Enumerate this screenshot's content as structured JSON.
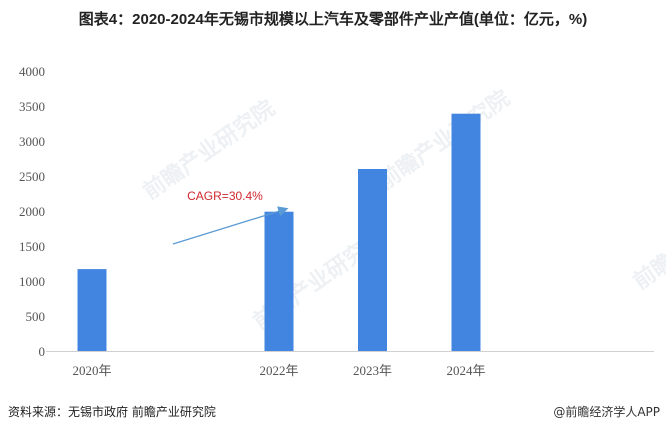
{
  "title": "图表4：2020-2024年无锡市规模以上汽车及零部件产业产值(单位：亿元，%)",
  "source": "资料来源：无锡市政府 前瞻产业研究院",
  "credit": "@前瞻经济学人APP",
  "watermark": "前瞻产业研究院",
  "chart_data": {
    "type": "bar",
    "title": "图表4：2020-2024年无锡市规模以上汽车及零部件产业产值(单位：亿元，%)",
    "categories": [
      "2020年",
      "2022年",
      "2023年",
      "2024年"
    ],
    "years": [
      2020,
      2022,
      2023,
      2024
    ],
    "values": [
      1170,
      1990,
      2600,
      3390
    ],
    "ylim": [
      0,
      4000
    ],
    "yticks": [
      0,
      500,
      1000,
      1500,
      2000,
      2500,
      3000,
      3500,
      4000
    ],
    "xlabel": "",
    "ylabel": "",
    "grid": false,
    "bar_color": "#4285e0",
    "annotation": {
      "text": "CAGR=30.4%",
      "color": "#d0282e",
      "arrow_color": "#5b9bd5"
    }
  }
}
